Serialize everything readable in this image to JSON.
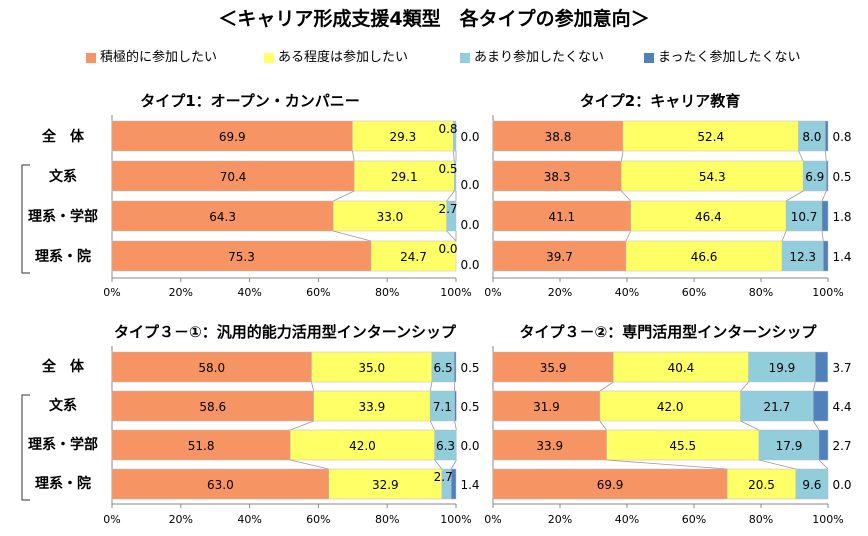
{
  "title": "＜キャリア形成支援4類型　各タイプの参加意向＞",
  "legend": [
    {
      "label": "積極的に参加したい",
      "color": "#f79463"
    },
    {
      "label": "ある程度は参加したい",
      "color": "#ffff66"
    },
    {
      "label": "あまり参加したくない",
      "color": "#92cddc"
    },
    {
      "label": "まったく参加したくない",
      "color": "#4f81bd"
    }
  ],
  "categories": [
    "全　体",
    "文系",
    "理系・学部",
    "理系・院"
  ],
  "chart_data": [
    {
      "type": "bar",
      "title": "タイプ1：オープン・カンパニー",
      "categories": [
        "全体",
        "文系",
        "理系・学部",
        "理系・院"
      ],
      "series": [
        {
          "name": "積極的に参加したい",
          "values": [
            69.9,
            70.4,
            64.3,
            75.3
          ]
        },
        {
          "name": "ある程度は参加したい",
          "values": [
            29.3,
            29.1,
            33.0,
            24.7
          ]
        },
        {
          "name": "あまり参加したくない",
          "values": [
            0.8,
            0.5,
            2.7,
            0.0
          ]
        },
        {
          "name": "まったく参加したくない",
          "values": [
            0.0,
            0.0,
            0.0,
            0.0
          ]
        }
      ],
      "xlim": [
        0,
        100
      ],
      "ticks": [
        "0%",
        "20%",
        "40%",
        "60%",
        "80%",
        "100%"
      ]
    },
    {
      "type": "bar",
      "title": "タイプ2：キャリア教育",
      "categories": [
        "全体",
        "文系",
        "理系・学部",
        "理系・院"
      ],
      "series": [
        {
          "name": "積極的に参加したい",
          "values": [
            38.8,
            38.3,
            41.1,
            39.7
          ]
        },
        {
          "name": "ある程度は参加したい",
          "values": [
            52.4,
            54.3,
            46.4,
            46.6
          ]
        },
        {
          "name": "あまり参加したくない",
          "values": [
            8.0,
            6.9,
            10.7,
            12.3
          ]
        },
        {
          "name": "まったく参加したくない",
          "values": [
            0.8,
            0.5,
            1.8,
            1.4
          ]
        }
      ],
      "xlim": [
        0,
        100
      ],
      "ticks": [
        "0%",
        "20%",
        "40%",
        "60%",
        "80%",
        "100%"
      ]
    },
    {
      "type": "bar",
      "title": "タイプ３－①：汎用的能力活用型インターンシップ",
      "categories": [
        "全体",
        "文系",
        "理系・学部",
        "理系・院"
      ],
      "series": [
        {
          "name": "積極的に参加したい",
          "values": [
            58.0,
            58.6,
            51.8,
            63.0
          ]
        },
        {
          "name": "ある程度は参加したい",
          "values": [
            35.0,
            33.9,
            42.0,
            32.9
          ]
        },
        {
          "name": "あまり参加したくない",
          "values": [
            6.5,
            7.1,
            6.3,
            2.7
          ]
        },
        {
          "name": "まったく参加したくない",
          "values": [
            0.5,
            0.5,
            0.0,
            1.4
          ]
        }
      ],
      "xlim": [
        0,
        100
      ],
      "ticks": [
        "0%",
        "20%",
        "40%",
        "60%",
        "80%",
        "100%"
      ]
    },
    {
      "type": "bar",
      "title": "タイプ３－②：専門活用型インターンシップ",
      "categories": [
        "全体",
        "文系",
        "理系・学部",
        "理系・院"
      ],
      "series": [
        {
          "name": "積極的に参加したい",
          "values": [
            35.9,
            31.9,
            33.9,
            69.9
          ]
        },
        {
          "name": "ある程度は参加したい",
          "values": [
            40.4,
            42.0,
            45.5,
            20.5
          ]
        },
        {
          "name": "あまり参加したくない",
          "values": [
            19.9,
            21.7,
            17.9,
            9.6
          ]
        },
        {
          "name": "まったく参加したくない",
          "values": [
            3.7,
            4.4,
            2.7,
            0.0
          ]
        }
      ],
      "xlim": [
        0,
        100
      ],
      "ticks": [
        "0%",
        "20%",
        "40%",
        "60%",
        "80%",
        "100%"
      ]
    }
  ]
}
